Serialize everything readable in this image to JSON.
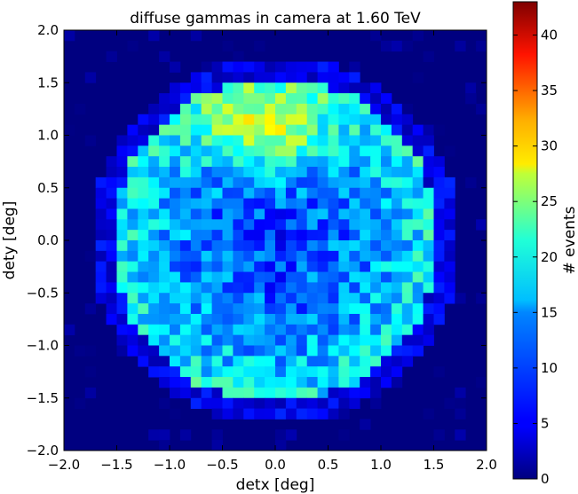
{
  "chart_data": {
    "type": "heatmap",
    "title": "diffuse gammas in camera at 1.60 TeV",
    "xlabel": "detx [deg]",
    "ylabel": "dety [deg]",
    "colorbar_label": "# events",
    "xlim": [
      -2.0,
      2.0
    ],
    "ylim": [
      -2.0,
      2.0
    ],
    "bins": 40,
    "colormap": "jet",
    "color_range": [
      0,
      43
    ],
    "x_ticks": [
      "−2.0",
      "−1.5",
      "−1.0",
      "−0.5",
      "0.0",
      "0.5",
      "1.0",
      "1.5",
      "2.0"
    ],
    "y_ticks": [
      "−2.0",
      "−1.5",
      "−1.0",
      "−0.5",
      "0.0",
      "0.5",
      "1.0",
      "1.5",
      "2.0"
    ],
    "colorbar_ticks": [
      "0",
      "5",
      "10",
      "15",
      "20",
      "25",
      "30",
      "35",
      "40"
    ],
    "distribution": {
      "shape": "disk",
      "radius_deg": 1.6,
      "center": [
        0.0,
        0.0
      ],
      "rim_peak_counts": 17,
      "center_counts": 8,
      "top_hotspot_counts": 26,
      "hotspot_center": [
        -0.1,
        1.05
      ],
      "max_bin_counts": 28
    }
  }
}
